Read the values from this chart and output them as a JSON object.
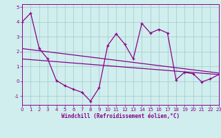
{
  "x": [
    0,
    1,
    2,
    3,
    4,
    5,
    6,
    7,
    8,
    9,
    10,
    11,
    12,
    13,
    14,
    15,
    16,
    17,
    18,
    19,
    20,
    21,
    22,
    23
  ],
  "windchill": [
    4.0,
    4.6,
    2.2,
    1.5,
    0.05,
    -0.3,
    -0.55,
    -0.75,
    -1.35,
    -0.45,
    2.4,
    3.2,
    2.5,
    1.5,
    3.9,
    3.25,
    3.5,
    3.25,
    0.1,
    0.6,
    0.5,
    -0.05,
    0.15,
    0.45
  ],
  "line_upper_start": 2.2,
  "line_upper_end": 0.55,
  "line_lower_start": 1.5,
  "line_lower_end": 0.45,
  "line_color": "#880088",
  "bg_color": "#d0eeee",
  "grid_color": "#a0c8c8",
  "xlabel": "Windchill (Refroidissement éolien,°C)",
  "ylim": [
    -1.6,
    5.2
  ],
  "xlim": [
    0,
    23
  ],
  "yticks": [
    -1,
    0,
    1,
    2,
    3,
    4,
    5
  ],
  "xticks": [
    0,
    1,
    2,
    3,
    4,
    5,
    6,
    7,
    8,
    9,
    10,
    11,
    12,
    13,
    14,
    15,
    16,
    17,
    18,
    19,
    20,
    21,
    22,
    23
  ],
  "xlabel_fontsize": 5.5,
  "tick_fontsize": 5.0
}
